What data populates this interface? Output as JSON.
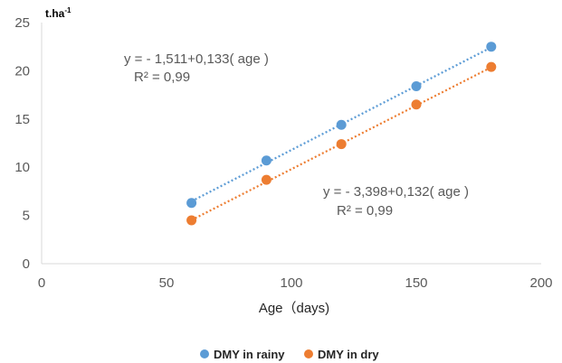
{
  "chart_data": {
    "type": "scatter",
    "x_ticks": [
      "0",
      "50",
      "100",
      "150",
      "200"
    ],
    "y_ticks": [
      "0",
      "5",
      "10",
      "15",
      "20",
      "25"
    ],
    "xlim": [
      0,
      200
    ],
    "ylim": [
      0,
      25
    ],
    "xlabel": "Age（days)",
    "ylabel": "t.ha",
    "ylabel_superscript": "-1",
    "grid": false,
    "legend_position": "bottom",
    "series": [
      {
        "name": "DMY in rainy",
        "color": "#5B9BD5",
        "x": [
          60,
          90,
          120,
          150,
          180
        ],
        "y": [
          6.3,
          10.7,
          14.4,
          18.4,
          22.5
        ],
        "trendline": {
          "slope": 0.133,
          "intercept": -1.511,
          "x_range": [
            60,
            180
          ]
        },
        "equation": "y = - 1,511+0,133( age )",
        "r2": "R² = 0,99"
      },
      {
        "name": "DMY in dry",
        "color": "#ED7D31",
        "x": [
          60,
          90,
          120,
          150,
          180
        ],
        "y": [
          4.5,
          8.7,
          12.4,
          16.5,
          20.4
        ],
        "trendline": {
          "slope": 0.132,
          "intercept": -3.398,
          "x_range": [
            60,
            180
          ]
        },
        "equation": "y = - 3,398+0,132( age )",
        "r2": "R² = 0,99"
      }
    ]
  }
}
